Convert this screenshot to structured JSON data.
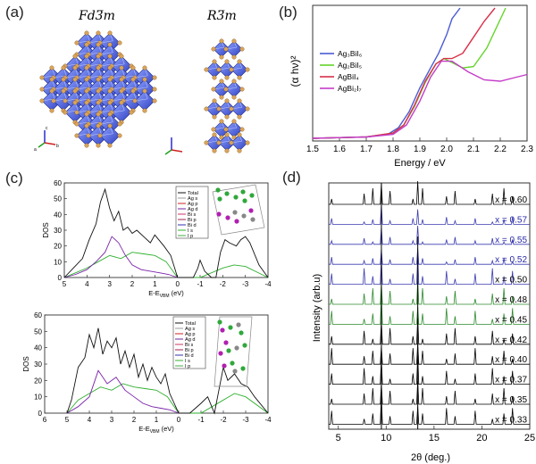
{
  "panels": {
    "a": {
      "label": "(a)",
      "structure_left": "Fd3̅m",
      "structure_right": "R3̅m",
      "axes": {
        "a": "a",
        "b": "b",
        "c": "c"
      }
    },
    "b": {
      "label": "(b)",
      "ylabel": "(α hν)²",
      "xlabel": "Energy / eV",
      "legend": [
        "Ag₃BiI₆",
        "Ag₂BiI₅",
        "AgBiI₄",
        "AgBi₂I₇"
      ],
      "colors": [
        "#4a5bd4",
        "#64d42a",
        "#d8304a",
        "#c43cc8"
      ]
    },
    "c": {
      "label": "(c)",
      "ylabel": "DOS",
      "xlabel": "E-E",
      "xlabel_sub": "VBM",
      "xlabel_unit": "(eV)",
      "legend": [
        "Total",
        "Ag s",
        "Ag p",
        "Ag d",
        "Bi s",
        "Bi p",
        "Bi d",
        "I s",
        "I p"
      ],
      "legend_colors": [
        "#111111",
        "#999999",
        "#d02020",
        "#7020a0",
        "#cc3366",
        "#a02050",
        "#3030b0",
        "#30b030",
        "#44aa44"
      ]
    },
    "d": {
      "label": "(d)",
      "ylabel": "Intensity (arb.u)",
      "xlabel": "2θ (deg.)",
      "x_values": [
        "x = 0.60",
        "x = 0.57",
        "x = 0.55",
        "x = 0.52",
        "x = 0.50",
        "x = 0.48",
        "x = 0.45",
        "x = 0.42",
        "x = 0.40",
        "x = 0.37",
        "x = 0.35",
        "x = 0.33"
      ],
      "x_colors": [
        "#000000",
        "#2a2aa8",
        "#2a2aa8",
        "#2a2aa8",
        "#000000",
        "#000000",
        "#000000",
        "#000000",
        "#000000",
        "#000000",
        "#000000",
        "#000000"
      ],
      "trace_colors": [
        "#000000",
        "#3a3ab0",
        "#3a3ab0",
        "#3a3ab0",
        "#3a3ab0",
        "#2c8a2c",
        "#2c8a2c",
        "#000000",
        "#000000",
        "#000000",
        "#000000",
        "#000000"
      ]
    }
  },
  "chart_data": [
    {
      "type": "line",
      "panel": "b",
      "xlabel": "Energy / eV",
      "ylabel": "(α hν)²",
      "xlim": [
        1.5,
        2.3
      ],
      "xticks": [
        "1.5",
        "1.6",
        "1.7",
        "1.8",
        "1.9",
        "2.0",
        "2.1",
        "2.2",
        "2.3"
      ],
      "series": [
        {
          "name": "Ag₃BiI₆",
          "x": [
            1.5,
            1.7,
            1.78,
            1.82,
            1.86,
            1.9,
            1.94,
            1.97,
            2.0,
            2.02,
            2.05
          ],
          "y": [
            0.02,
            0.03,
            0.05,
            0.1,
            0.22,
            0.4,
            0.55,
            0.66,
            0.8,
            0.92,
            1.0
          ]
        },
        {
          "name": "Ag₂BiI₅",
          "x": [
            1.5,
            1.7,
            1.8,
            1.84,
            1.88,
            1.92,
            1.96,
            1.99,
            2.02,
            2.06,
            2.1,
            2.15,
            2.22
          ],
          "y": [
            0.02,
            0.03,
            0.06,
            0.12,
            0.26,
            0.44,
            0.58,
            0.62,
            0.59,
            0.55,
            0.56,
            0.7,
            1.0
          ]
        },
        {
          "name": "AgBiI₄",
          "x": [
            1.5,
            1.7,
            1.8,
            1.84,
            1.88,
            1.92,
            1.96,
            1.99,
            2.02,
            2.06,
            2.1,
            2.14,
            2.18
          ],
          "y": [
            0.02,
            0.03,
            0.06,
            0.12,
            0.27,
            0.45,
            0.58,
            0.62,
            0.62,
            0.66,
            0.78,
            0.9,
            1.0
          ]
        },
        {
          "name": "AgBi₂I₇",
          "x": [
            1.5,
            1.7,
            1.8,
            1.85,
            1.9,
            1.94,
            1.98,
            2.02,
            2.08,
            2.14,
            2.2,
            2.26,
            2.3
          ],
          "y": [
            0.02,
            0.03,
            0.05,
            0.12,
            0.3,
            0.48,
            0.6,
            0.6,
            0.52,
            0.46,
            0.45,
            0.48,
            0.5
          ]
        }
      ]
    },
    {
      "type": "line",
      "panel": "c-top",
      "ylabel": "DOS",
      "xlim": [
        5,
        -4
      ],
      "ylim": [
        0,
        60
      ],
      "xticks": [
        "5",
        "4",
        "3",
        "2",
        "1",
        "0",
        "-1",
        "-2",
        "-3",
        "-4"
      ],
      "yticks": [
        "0",
        "10",
        "20",
        "30",
        "40",
        "50",
        "60"
      ],
      "series": [
        {
          "name": "Total",
          "x": [
            5,
            4.6,
            4.2,
            3.9,
            3.6,
            3.4,
            3.2,
            3.0,
            2.8,
            2.6,
            2.4,
            2.2,
            2.0,
            1.8,
            1.5,
            1.2,
            1.0,
            0.6,
            0.3,
            0.1,
            0,
            -0.4,
            -0.7,
            -0.9,
            -1.0,
            -1.2,
            -1.5,
            -1.7,
            -1.9,
            -2.1,
            -2.3,
            -2.6,
            -2.8,
            -3.0,
            -3.2,
            -3.6,
            -4.0
          ],
          "y": [
            0,
            6,
            12,
            24,
            34,
            48,
            56,
            44,
            36,
            42,
            30,
            32,
            28,
            30,
            26,
            22,
            27,
            20,
            14,
            5,
            0,
            0,
            0,
            6,
            11,
            4,
            0,
            0,
            16,
            24,
            22,
            20,
            24,
            26,
            22,
            8,
            0
          ]
        },
        {
          "name": "Ag d",
          "x": [
            5,
            4.5,
            4.0,
            3.6,
            3.2,
            2.9,
            2.6,
            2.3,
            2.0,
            1.6,
            1.2,
            0.8,
            0.4,
            0
          ],
          "y": [
            0,
            2,
            5,
            10,
            16,
            26,
            22,
            14,
            8,
            5,
            4,
            3,
            2,
            0
          ]
        },
        {
          "name": "I p",
          "x": [
            5,
            4.5,
            4.0,
            3.5,
            3.0,
            2.5,
            2.0,
            1.5,
            1.0,
            0.5,
            0,
            -1,
            -2,
            -2.5,
            -3,
            -4
          ],
          "y": [
            0,
            3,
            6,
            10,
            14,
            12,
            16,
            15,
            14,
            10,
            0,
            0,
            6,
            8,
            7,
            0
          ]
        }
      ]
    },
    {
      "type": "line",
      "panel": "c-bottom",
      "ylabel": "DOS",
      "xlim": [
        6,
        -4
      ],
      "ylim": [
        0,
        60
      ],
      "xticks": [
        "6",
        "5",
        "4",
        "3",
        "2",
        "1",
        "0",
        "-1",
        "-2",
        "-3",
        "-4"
      ],
      "yticks": [
        "0",
        "10",
        "20",
        "30",
        "40",
        "50",
        "60"
      ],
      "series": [
        {
          "name": "Total",
          "x": [
            5,
            4.8,
            4.5,
            4.2,
            4.0,
            3.8,
            3.6,
            3.4,
            3.2,
            3.0,
            2.8,
            2.6,
            2.4,
            2.2,
            2.0,
            1.8,
            1.6,
            1.4,
            1.2,
            1.0,
            0.8,
            0.6,
            0.4,
            0.2,
            0,
            -0.5,
            -1,
            -1.3,
            -1.6,
            -1.8,
            -2.0,
            -2.2,
            -2.5,
            -2.8,
            -3.1,
            -3.4,
            -4
          ],
          "y": [
            0,
            8,
            28,
            34,
            48,
            40,
            52,
            36,
            44,
            40,
            46,
            30,
            38,
            28,
            36,
            22,
            30,
            20,
            28,
            22,
            18,
            24,
            12,
            6,
            0,
            0,
            6,
            10,
            0,
            14,
            28,
            20,
            24,
            18,
            16,
            10,
            0
          ]
        },
        {
          "name": "Ag d",
          "x": [
            5,
            4.5,
            4.0,
            3.6,
            3.2,
            2.8,
            2.4,
            2.0,
            1.6,
            1.2,
            0.8,
            0.4,
            0
          ],
          "y": [
            0,
            4,
            10,
            26,
            18,
            22,
            14,
            10,
            6,
            4,
            3,
            2,
            0
          ]
        },
        {
          "name": "I p",
          "x": [
            5,
            4.5,
            4.0,
            3.5,
            3.0,
            2.5,
            2.0,
            1.5,
            1.0,
            0.5,
            0,
            -1,
            -2,
            -2.5,
            -3,
            -4
          ],
          "y": [
            0,
            8,
            12,
            16,
            14,
            18,
            16,
            15,
            14,
            10,
            0,
            0,
            8,
            12,
            10,
            0
          ]
        }
      ]
    },
    {
      "type": "line",
      "panel": "d",
      "xlabel": "2θ (deg.)",
      "ylabel": "Intensity (arb.u)",
      "xlim": [
        4,
        25
      ],
      "xticks": [
        "5",
        "10",
        "15",
        "20",
        "25"
      ],
      "peaks_2theta": [
        4.3,
        7.7,
        8.6,
        9.5,
        10.4,
        12.8,
        13.3,
        13.8,
        16.3,
        17.2,
        19.3,
        21.1,
        22.3,
        23.2
      ]
    }
  ]
}
